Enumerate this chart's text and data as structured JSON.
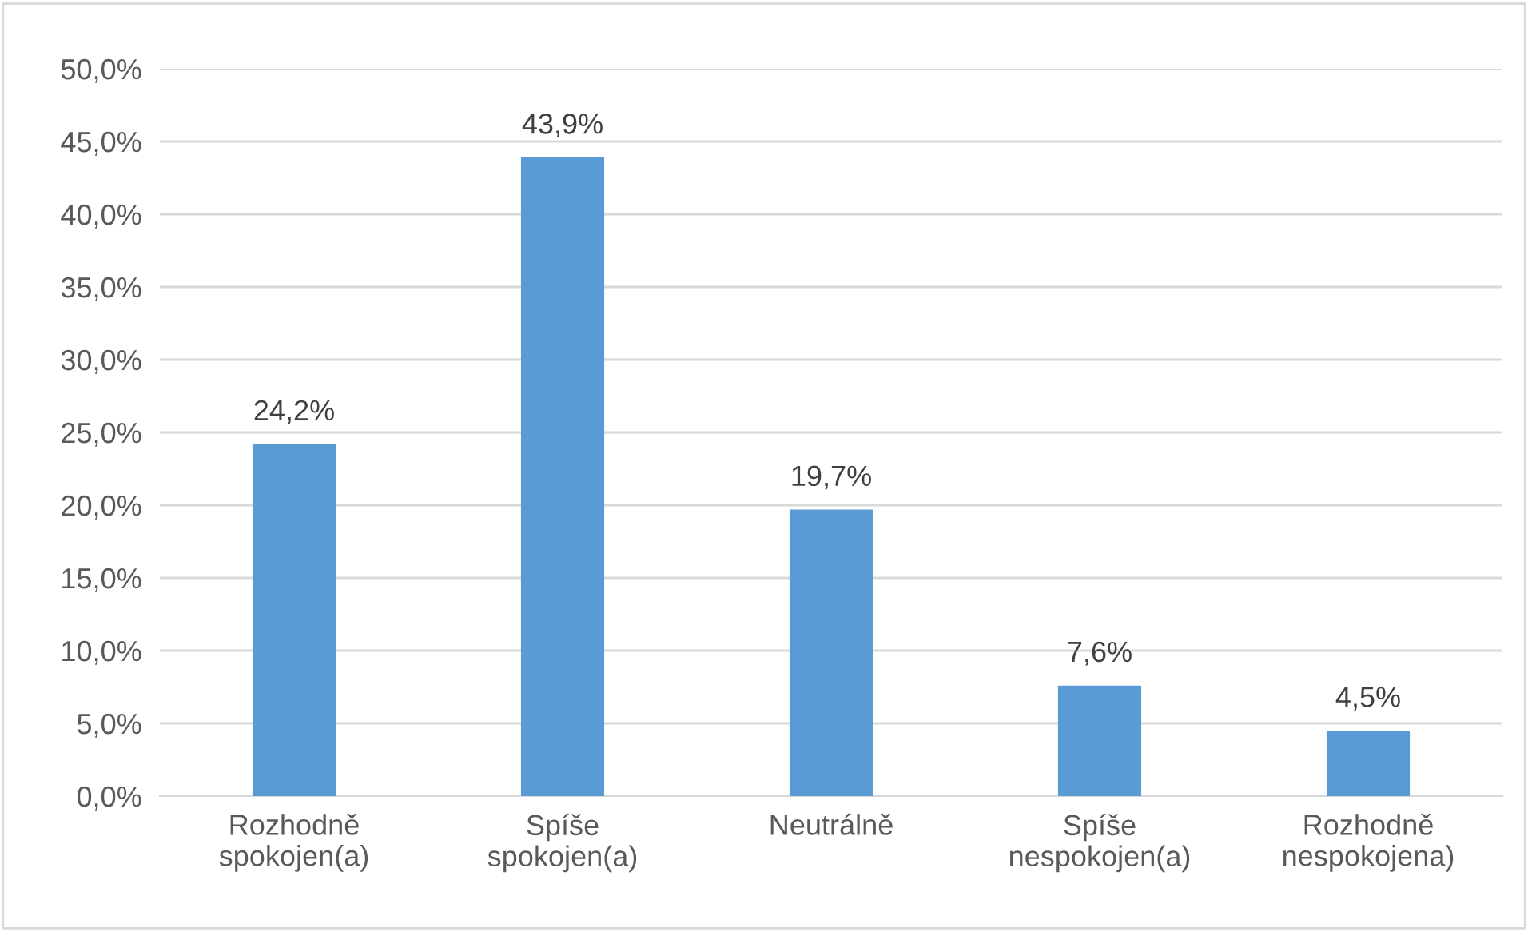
{
  "chart_data": {
    "type": "bar",
    "categories": [
      "Rozhodně\nspokojen(a)",
      "Spíše\nspokojen(a)",
      "Neutrálně",
      "Spíše\nnespokojen(a)",
      "Rozhodně\nnespokojena)"
    ],
    "values": [
      24.2,
      43.9,
      19.7,
      7.6,
      4.5
    ],
    "value_labels": [
      "24,2%",
      "43,9%",
      "19,7%",
      "7,6%",
      "4,5%"
    ],
    "color": "#5b9bd5",
    "ylim": [
      0,
      50
    ],
    "yticks": [
      {
        "value": 0,
        "label": "0,0%"
      },
      {
        "value": 5,
        "label": "5,0%"
      },
      {
        "value": 10,
        "label": "10,0%"
      },
      {
        "value": 15,
        "label": "15,0%"
      },
      {
        "value": 20,
        "label": "20,0%"
      },
      {
        "value": 25,
        "label": "25,0%"
      },
      {
        "value": 30,
        "label": "30,0%"
      },
      {
        "value": 35,
        "label": "35,0%"
      },
      {
        "value": 40,
        "label": "40,0%"
      },
      {
        "value": 45,
        "label": "45,0%"
      },
      {
        "value": 50,
        "label": "50,0%"
      }
    ],
    "grid": "y"
  }
}
